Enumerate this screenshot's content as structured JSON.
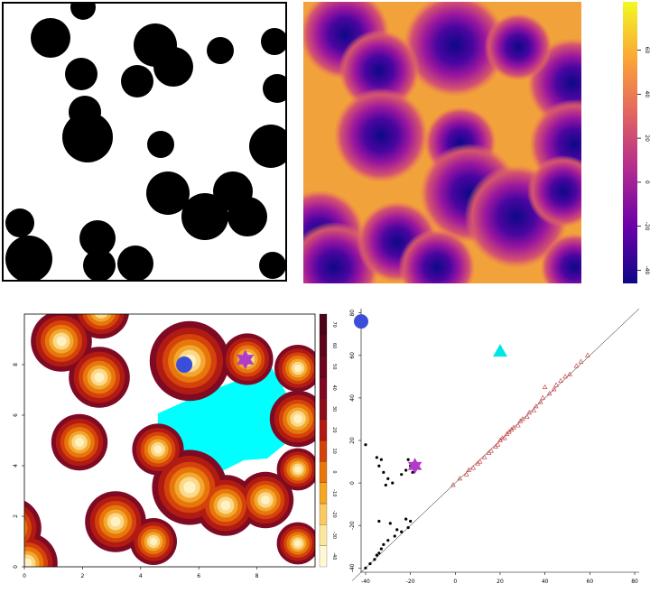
{
  "panels": {
    "binary_image": {
      "title": ""
    },
    "distance_heatmap": {
      "title": "",
      "colorbar": {
        "ticks": [
          "-40",
          "-20",
          "0",
          "20",
          "40",
          "60"
        ],
        "vmin": -46,
        "vmax": 82
      }
    },
    "contour_map": {
      "title": "",
      "x_ticks": [
        "0",
        "2",
        "4",
        "6",
        "8"
      ],
      "y_ticks": [
        "0",
        "2",
        "4",
        "6",
        "8"
      ],
      "colorbar_ticks": [
        "-40",
        "-30",
        "-20",
        "-10",
        "0",
        "10",
        "20",
        "30",
        "40",
        "50",
        "60",
        "70"
      ],
      "markers": [
        {
          "name": "circle-marker",
          "x": 5.5,
          "y": 8.0,
          "color": "#3b4ed8"
        },
        {
          "name": "star-marker",
          "x": 7.6,
          "y": 8.2,
          "color": "#b03cc8"
        }
      ]
    },
    "persistence_diagram": {
      "title": "",
      "x_ticks": [
        "-40",
        "-20",
        "0",
        "20",
        "40",
        "60",
        "80"
      ],
      "y_ticks": [
        "-40",
        "-20",
        "0",
        "20",
        "40",
        "60",
        "80"
      ],
      "markers": [
        {
          "name": "circle-marker",
          "x": -42,
          "y": 76,
          "color": "#3b4ed8"
        },
        {
          "name": "triangle-marker",
          "x": 20,
          "y": 62,
          "color": "#00e5e5"
        },
        {
          "name": "star-marker",
          "x": -18,
          "y": 8,
          "color": "#b03cc8"
        }
      ]
    }
  },
  "chart_data": {
    "type": "scatter",
    "xlabel": "",
    "ylabel": "",
    "xlim": [
      -42,
      82
    ],
    "ylim": [
      -42,
      82
    ],
    "diagonal": true,
    "series": [
      {
        "marker": "filled-dot",
        "color": "#000000",
        "points": [
          [
            -40,
            18
          ],
          [
            -35,
            12
          ],
          [
            -33,
            11
          ],
          [
            -34,
            8
          ],
          [
            -32,
            5
          ],
          [
            -30,
            2
          ],
          [
            -28,
            0
          ],
          [
            -31,
            -1
          ],
          [
            -24,
            4
          ],
          [
            -22,
            6
          ],
          [
            -20,
            8
          ],
          [
            -21,
            11
          ],
          [
            -19,
            5
          ],
          [
            -34,
            -18
          ],
          [
            -29,
            -19
          ],
          [
            -22,
            -17
          ],
          [
            -20,
            -18
          ],
          [
            -21,
            -21
          ],
          [
            -24,
            -23
          ],
          [
            -26,
            -22
          ],
          [
            -27,
            -25
          ],
          [
            -30,
            -27
          ],
          [
            -32,
            -29
          ],
          [
            -33,
            -31
          ],
          [
            -34,
            -33
          ],
          [
            -35,
            -34
          ],
          [
            -36,
            -36
          ],
          [
            -38,
            -38
          ],
          [
            -40,
            -40
          ]
        ]
      },
      {
        "marker": "open-triangle",
        "color": "#cc3333",
        "points": [
          [
            -1,
            -1
          ],
          [
            2,
            2
          ],
          [
            5,
            4
          ],
          [
            6,
            6
          ],
          [
            8,
            7
          ],
          [
            10,
            9
          ],
          [
            11,
            10
          ],
          [
            13,
            12
          ],
          [
            15,
            14
          ],
          [
            16,
            15
          ],
          [
            18,
            17
          ],
          [
            19,
            18
          ],
          [
            20,
            20
          ],
          [
            21,
            21
          ],
          [
            22,
            21
          ],
          [
            23,
            23
          ],
          [
            24,
            24
          ],
          [
            25,
            25
          ],
          [
            26,
            26
          ],
          [
            28,
            27
          ],
          [
            29,
            29
          ],
          [
            30,
            30
          ],
          [
            32,
            31
          ],
          [
            33,
            33
          ],
          [
            35,
            34
          ],
          [
            36,
            36
          ],
          [
            38,
            38
          ],
          [
            39,
            40
          ],
          [
            40,
            45
          ],
          [
            42,
            42
          ],
          [
            44,
            44
          ],
          [
            45,
            46
          ],
          [
            47,
            48
          ],
          [
            49,
            50
          ],
          [
            51,
            51
          ],
          [
            54,
            55
          ],
          [
            56,
            57
          ],
          [
            59,
            60
          ]
        ]
      }
    ]
  }
}
